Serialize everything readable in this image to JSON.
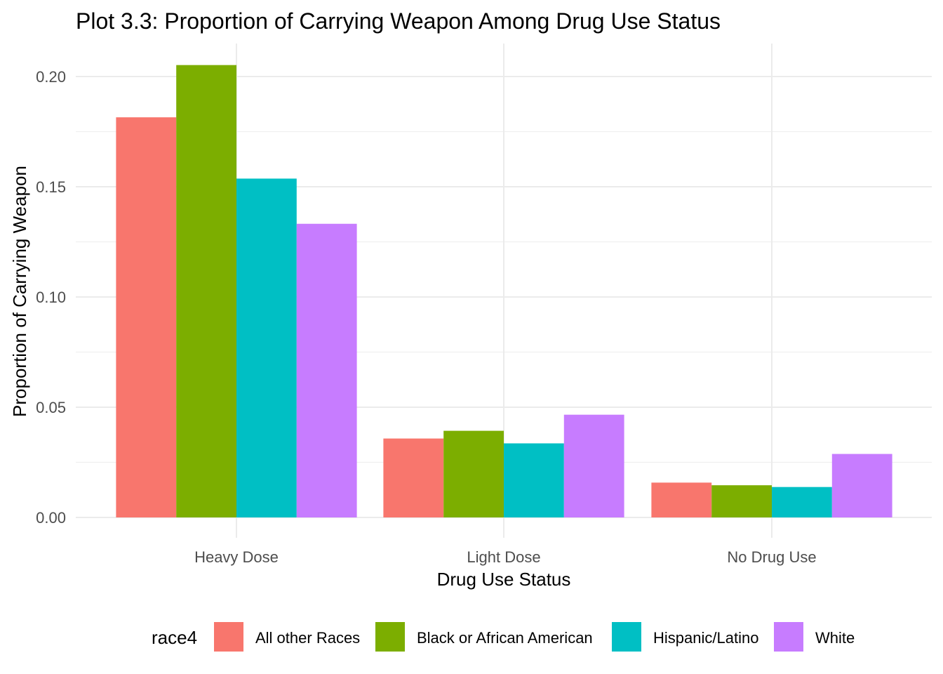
{
  "chart_data": {
    "type": "bar",
    "title": "Plot 3.3: Proportion of Carrying Weapon Among Drug Use Status",
    "xlabel": "Drug Use Status",
    "ylabel": "Proportion of Carrying Weapon",
    "categories": [
      "Heavy Dose",
      "Light Dose",
      "No Drug Use"
    ],
    "ylim": [
      0,
      0.215
    ],
    "y_ticks": [
      0.0,
      0.05,
      0.1,
      0.15,
      0.2
    ],
    "y_tick_labels": [
      "0.00",
      "0.05",
      "0.10",
      "0.15",
      "0.20"
    ],
    "grid": true,
    "legend": {
      "title": "race4",
      "position": "bottom"
    },
    "series": [
      {
        "name": "All other Races",
        "color": "#F8766D",
        "values": [
          0.1815,
          0.0358,
          0.0158
        ]
      },
      {
        "name": "Black or African American",
        "color": "#7CAE00",
        "values": [
          0.2052,
          0.0393,
          0.0146
        ]
      },
      {
        "name": "Hispanic/Latino",
        "color": "#00BFC4",
        "values": [
          0.1537,
          0.0336,
          0.0138
        ]
      },
      {
        "name": "White",
        "color": "#C77CFF",
        "values": [
          0.1332,
          0.0466,
          0.0288
        ]
      }
    ]
  }
}
